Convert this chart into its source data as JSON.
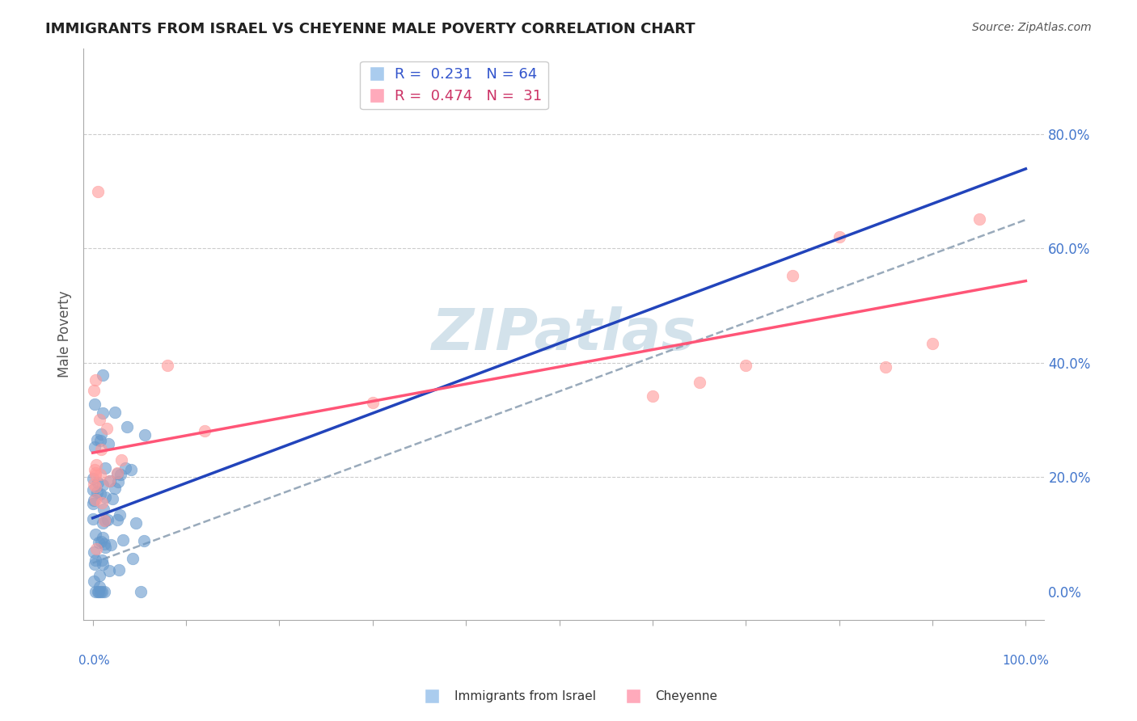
{
  "title": "IMMIGRANTS FROM ISRAEL VS CHEYENNE MALE POVERTY CORRELATION CHART",
  "source": "Source: ZipAtlas.com",
  "ylabel": "Male Poverty",
  "r_blue": 0.231,
  "n_blue": 64,
  "r_pink": 0.474,
  "n_pink": 31,
  "right_yticks": [
    0.0,
    0.2,
    0.4,
    0.6,
    0.8
  ],
  "right_yticklabels": [
    "0.0%",
    "20.0%",
    "40.0%",
    "60.0%",
    "80.0%"
  ],
  "background_color": "#ffffff",
  "blue_color": "#6699cc",
  "pink_color": "#ff9999",
  "blue_line_color": "#2244bb",
  "pink_line_color": "#ff5577",
  "dashed_line_color": "#99aabb",
  "grid_color": "#cccccc",
  "title_color": "#222222",
  "axis_label_color": "#4477cc",
  "watermark_color": "#ccdde8",
  "legend_label_color_blue": "#3355cc",
  "legend_label_color_pink": "#cc3366"
}
